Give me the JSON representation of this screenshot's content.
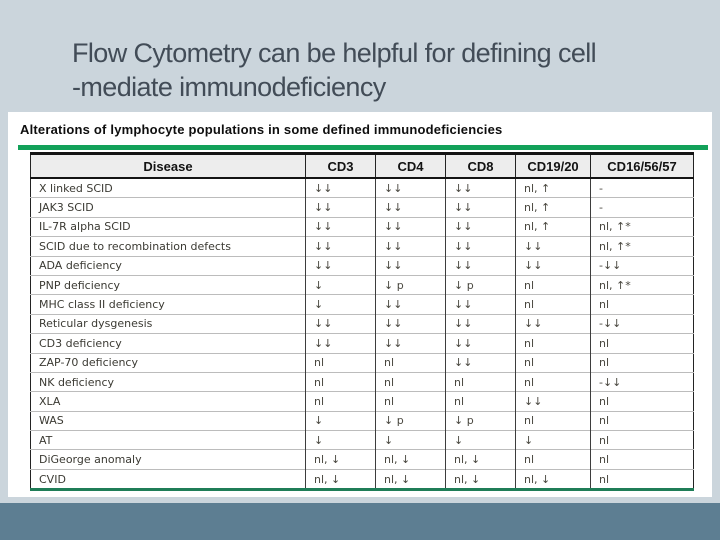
{
  "slide": {
    "title_line1": "Flow Cytometry can be helpful for defining cell",
    "title_line2": "-mediate immunodeficiency"
  },
  "table": {
    "caption": "Alterations of lymphocyte populations in some defined immunodeficiencies",
    "columns": [
      "Disease",
      "CD3",
      "CD4",
      "CD8",
      "CD19/20",
      "CD16/56/57"
    ],
    "rows": [
      [
        "X linked SCID",
        "↓↓",
        "↓↓",
        "↓↓",
        "nl, ↑",
        "-"
      ],
      [
        "JAK3 SCID",
        "↓↓",
        "↓↓",
        "↓↓",
        "nl, ↑",
        "-"
      ],
      [
        "IL-7R alpha SCID",
        "↓↓",
        "↓↓",
        "↓↓",
        "nl, ↑",
        "nl, ↑*"
      ],
      [
        "SCID due to recombination defects",
        "↓↓",
        "↓↓",
        "↓↓",
        "↓↓",
        "nl, ↑*"
      ],
      [
        "ADA deficiency",
        "↓↓",
        "↓↓",
        "↓↓",
        "↓↓",
        "-↓↓"
      ],
      [
        "PNP deficiency",
        "↓",
        "↓ p",
        "↓ p",
        "nl",
        "nl, ↑*"
      ],
      [
        "MHC class II deficiency",
        "↓",
        "↓↓",
        "↓↓",
        "nl",
        "nl"
      ],
      [
        "Reticular dysgenesis",
        "↓↓",
        "↓↓",
        "↓↓",
        "↓↓",
        "-↓↓"
      ],
      [
        "CD3 deficiency",
        "↓↓",
        "↓↓",
        "↓↓",
        "nl",
        "nl"
      ],
      [
        "ZAP-70 deficiency",
        "nl",
        "nl",
        "↓↓",
        "nl",
        "nl"
      ],
      [
        "NK deficiency",
        "nl",
        "nl",
        "nl",
        "nl",
        "-↓↓"
      ],
      [
        "XLA",
        "nl",
        "nl",
        "nl",
        "↓↓",
        "nl"
      ],
      [
        "WAS",
        "↓",
        "↓ p",
        "↓ p",
        "nl",
        "nl"
      ],
      [
        "AT",
        "↓",
        "↓",
        "↓",
        "↓",
        "nl"
      ],
      [
        "DiGeorge anomaly",
        "nl, ↓",
        "nl, ↓",
        "nl, ↓",
        "nl",
        "nl"
      ],
      [
        "CVID",
        "nl, ↓",
        "nl, ↓",
        "nl, ↓",
        "nl, ↓",
        "nl"
      ]
    ]
  },
  "colors": {
    "slide_background": "#cbd5dc",
    "title_text": "#424c57",
    "accent_green": "#12a159",
    "table_bottom_border": "#1f7d57",
    "footer_bar": "#5d7e92",
    "header_row_background": "#ededed"
  }
}
